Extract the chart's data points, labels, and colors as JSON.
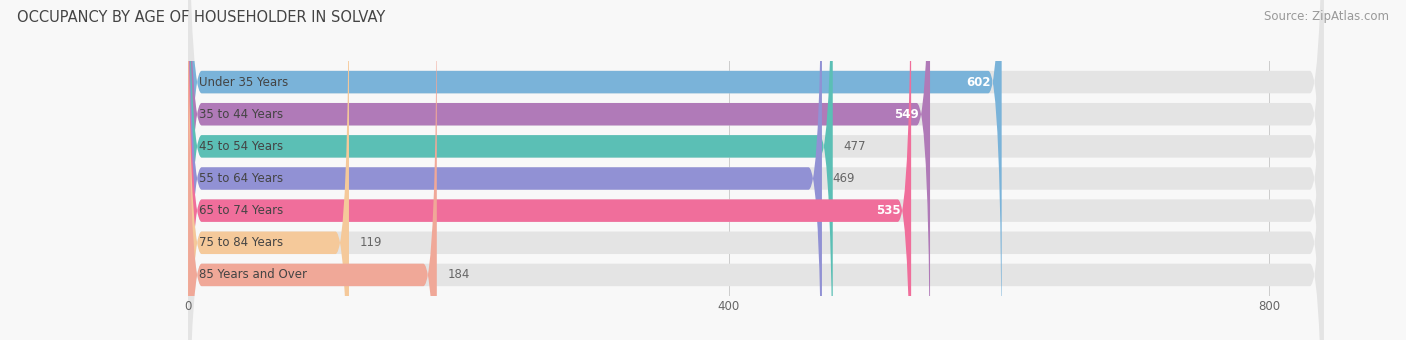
{
  "title": "OCCUPANCY BY AGE OF HOUSEHOLDER IN SOLVAY",
  "source": "Source: ZipAtlas.com",
  "categories": [
    "Under 35 Years",
    "35 to 44 Years",
    "45 to 54 Years",
    "55 to 64 Years",
    "65 to 74 Years",
    "75 to 84 Years",
    "85 Years and Over"
  ],
  "values": [
    602,
    549,
    477,
    469,
    535,
    119,
    184
  ],
  "bar_colors": [
    "#7ab3d9",
    "#b07ab8",
    "#5bbfb5",
    "#9191d4",
    "#f06e9b",
    "#f5c99a",
    "#f0a898"
  ],
  "label_colors": [
    "white",
    "white",
    "#666666",
    "#666666",
    "white",
    "#666666",
    "#666666"
  ],
  "xlim": [
    -30,
    870
  ],
  "xticks": [
    0,
    400,
    800
  ],
  "background_color": "#f8f8f8",
  "bar_background_color": "#e4e4e4",
  "title_fontsize": 10.5,
  "source_fontsize": 8.5,
  "label_fontsize": 8.5,
  "value_fontsize": 8.5,
  "bar_height": 0.7,
  "rounding_size": 10
}
